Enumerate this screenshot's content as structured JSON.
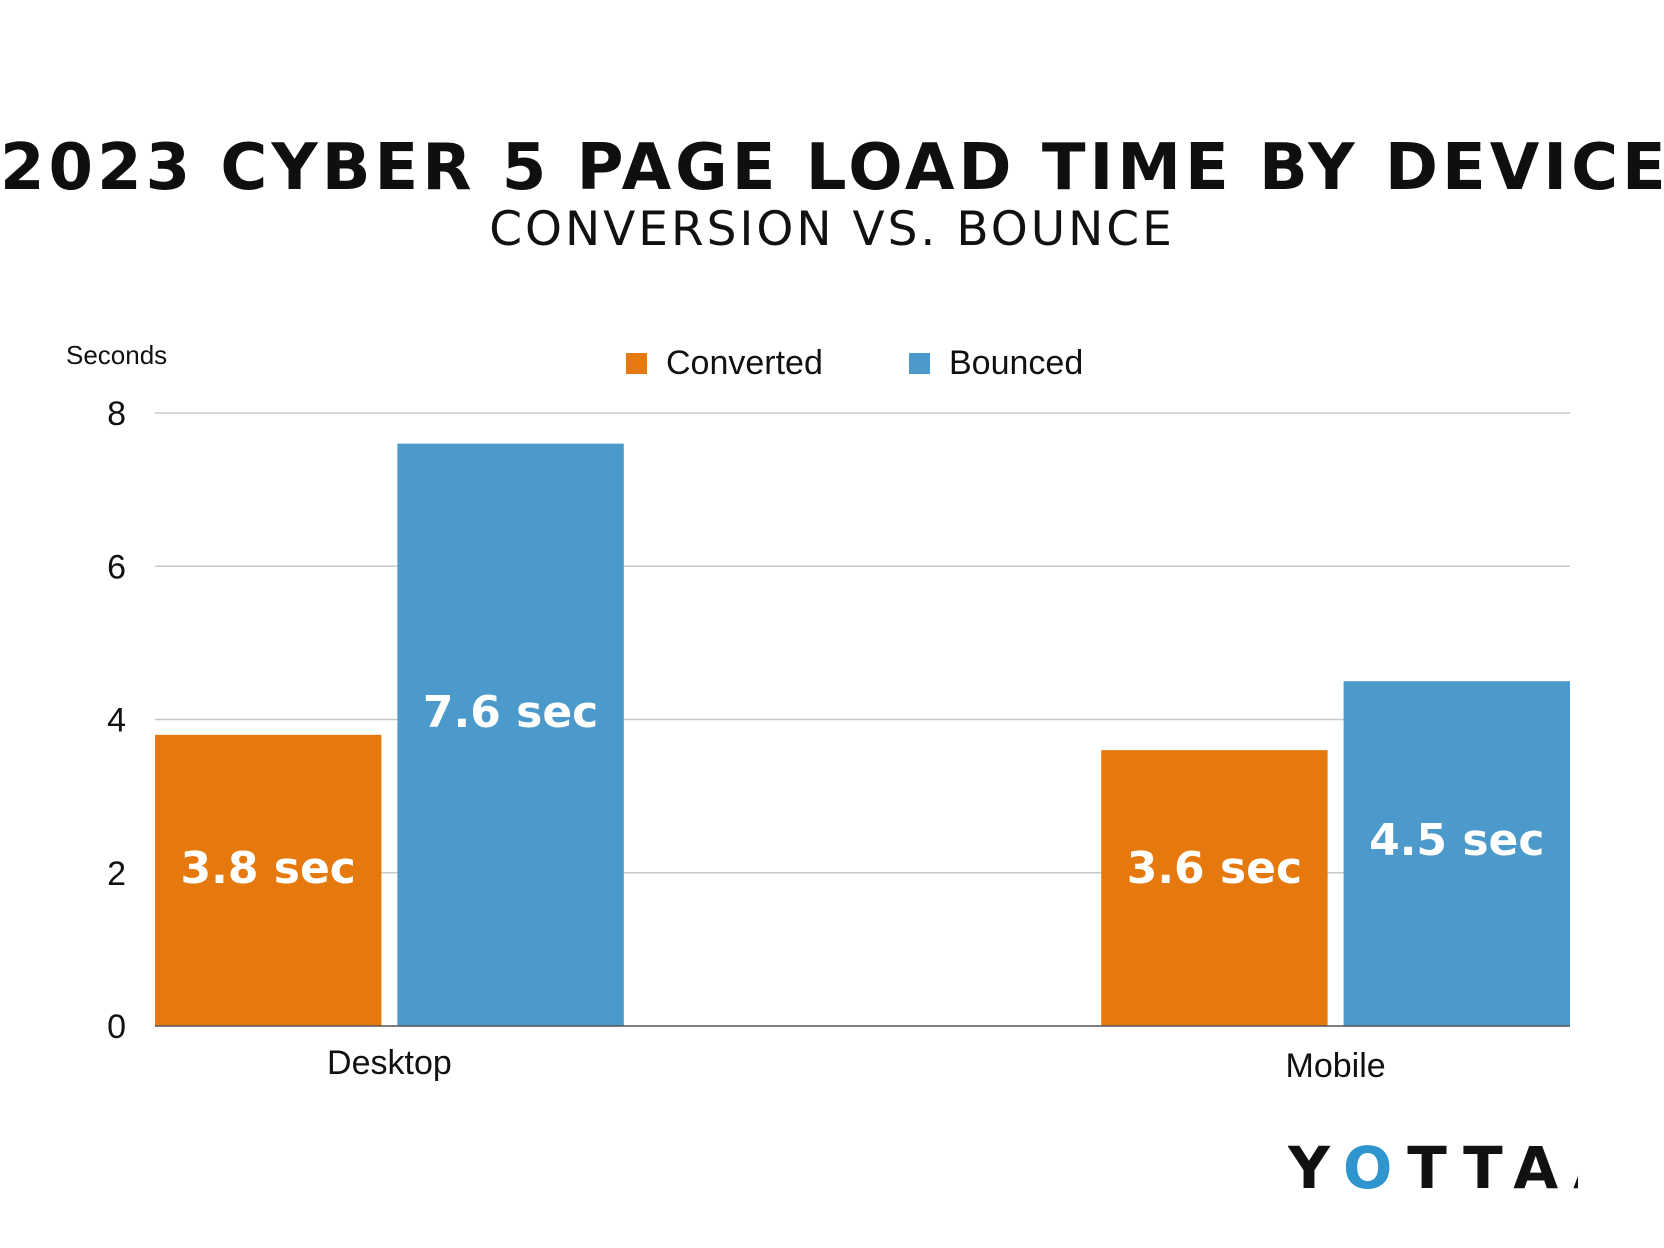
{
  "title": "2023 CYBER 5 PAGE LOAD TIME BY DEVICE",
  "subtitle": "CONVERSION VS. BOUNCE",
  "logo_text": "YOTTAA",
  "colors": {
    "converted": "#E5790E",
    "bounced": "#4B9ACB",
    "grid": "#C8C8C8",
    "axis": "#555555",
    "text": "#111111",
    "logo_accent": "#2E95CF"
  },
  "chart_data": {
    "type": "bar",
    "title": "2023 CYBER 5 PAGE LOAD TIME BY DEVICE",
    "subtitle": "CONVERSION VS. BOUNCE",
    "xlabel": "",
    "ylabel": "Seconds",
    "categories": [
      "Desktop",
      "Mobile"
    ],
    "series": [
      {
        "name": "Converted",
        "values": [
          3.8,
          3.6
        ],
        "labels": [
          "3.8 sec",
          "3.6 sec"
        ],
        "color": "#E5790E"
      },
      {
        "name": "Bounced",
        "values": [
          7.6,
          4.5
        ],
        "labels": [
          "7.6 sec",
          "4.5 sec"
        ],
        "color": "#4B9ACB"
      }
    ],
    "ylim": [
      0,
      8
    ],
    "yticks": [
      0,
      2,
      4,
      6,
      8
    ],
    "grid": true,
    "legend": "top-center"
  }
}
